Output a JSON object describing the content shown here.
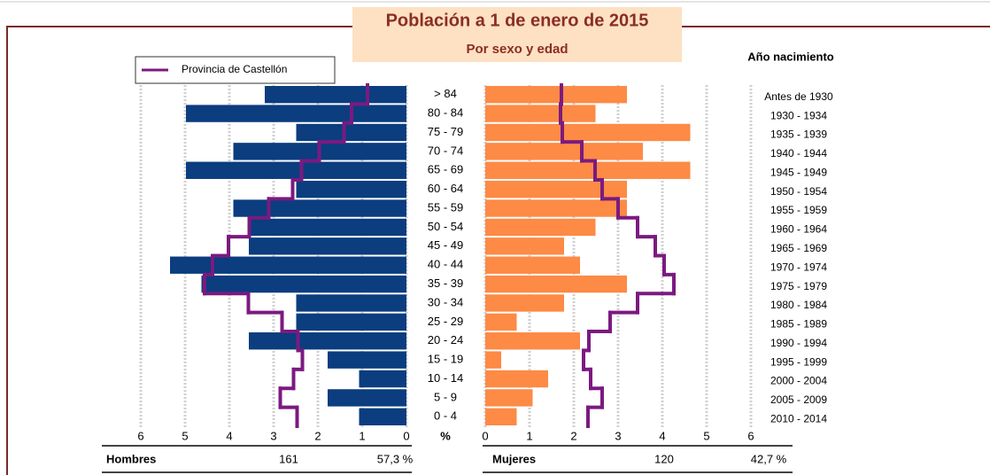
{
  "chart_data": {
    "type": "population_pyramid",
    "title": "Población a 1 de enero de 2015",
    "subtitle": "Por sexo y edad",
    "categories": [
      "> 84",
      "80 - 84",
      "75 - 79",
      "70 - 74",
      "65 - 69",
      "60 - 64",
      "55 - 59",
      "50 - 54",
      "45 - 49",
      "40 - 44",
      "35 - 39",
      "30 - 34",
      "25 - 29",
      "20 - 24",
      "15 - 19",
      "10 - 14",
      "5 - 9",
      "0 - 4"
    ],
    "birth_years_title": "Año nacimiento",
    "birth_years": [
      "Antes de 1930",
      "1930 - 1934",
      "1935 - 1939",
      "1940 - 1944",
      "1945 - 1949",
      "1950 - 1954",
      "1955 - 1959",
      "1960 - 1964",
      "1965 - 1969",
      "1970 - 1974",
      "1975 - 1979",
      "1980 - 1984",
      "1985 - 1989",
      "1990 - 1994",
      "1995 - 1999",
      "2000 - 2004",
      "2005 - 2009",
      "2010 - 2014"
    ],
    "xlabel": "%",
    "xlim": [
      0,
      6
    ],
    "xticks": [
      0,
      1,
      2,
      3,
      4,
      5,
      6
    ],
    "grid": true,
    "series": [
      {
        "name": "Hombres",
        "side": "left",
        "color": "#0b3d7f",
        "total": 161,
        "share": {
          "value": 57.3,
          "label": "57,3 %"
        },
        "values": [
          3.2,
          4.98,
          2.49,
          3.91,
          4.98,
          2.49,
          3.91,
          3.56,
          3.56,
          5.34,
          4.63,
          2.49,
          2.49,
          3.56,
          1.78,
          1.07,
          1.78,
          1.07
        ]
      },
      {
        "name": "Mujeres",
        "side": "right",
        "color": "#fd8a45",
        "total": 120,
        "share": {
          "value": 42.7,
          "label": "42,7 %"
        },
        "values": [
          3.2,
          2.49,
          4.63,
          3.56,
          4.63,
          3.2,
          3.2,
          2.49,
          1.78,
          2.14,
          3.2,
          1.78,
          0.71,
          2.14,
          0.36,
          1.42,
          1.07,
          0.71
        ]
      }
    ],
    "reference": {
      "name": "Provincia de Castellón",
      "color": "#7b1a80",
      "left": [
        0.88,
        1.24,
        1.41,
        1.97,
        2.37,
        2.57,
        3.11,
        3.55,
        4.02,
        4.38,
        4.56,
        3.57,
        2.81,
        2.45,
        2.35,
        2.55,
        2.85,
        2.47
      ],
      "right": [
        1.72,
        1.7,
        1.74,
        2.18,
        2.48,
        2.64,
        3.0,
        3.44,
        3.84,
        4.04,
        4.26,
        3.44,
        2.82,
        2.34,
        2.22,
        2.38,
        2.64,
        2.32
      ]
    }
  }
}
